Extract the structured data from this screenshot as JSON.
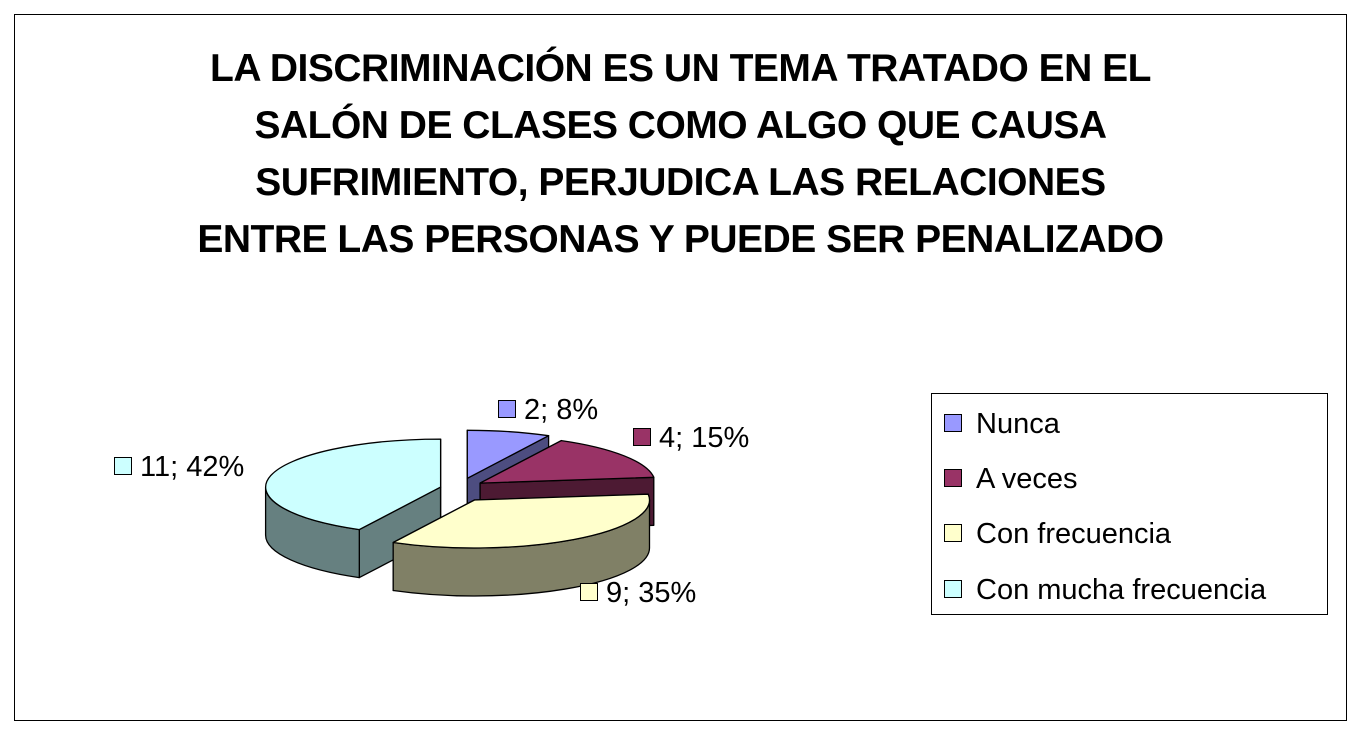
{
  "chart_data": {
    "type": "pie",
    "title_lines": [
      "LA DISCRIMINACIÓN ES UN TEMA TRATADO EN EL",
      "SALÓN DE CLASES COMO ALGO QUE CAUSA",
      "SUFRIMIENTO, PERJUDICA LAS RELACIONES",
      "ENTRE LAS PERSONAS Y PUEDE SER PENALIZADO"
    ],
    "style": "3d-exploded",
    "legend_position": "right",
    "slices": [
      {
        "label": "Nunca",
        "value": 2,
        "percent": "8%",
        "data_label": "2; 8%",
        "color": "#9999ff",
        "side_color": "#4d4d80"
      },
      {
        "label": "A veces",
        "value": 4,
        "percent": "15%",
        "data_label": "4; 15%",
        "color": "#993366",
        "side_color": "#4d1a33"
      },
      {
        "label": "Con frecuencia",
        "value": 9,
        "percent": "35%",
        "data_label": "9; 35%",
        "color": "#ffffcc",
        "side_color": "#808066"
      },
      {
        "label": "Con mucha frecuencia",
        "value": 11,
        "percent": "42%",
        "data_label": "11; 42%",
        "color": "#ccffff",
        "side_color": "#668080"
      }
    ]
  }
}
